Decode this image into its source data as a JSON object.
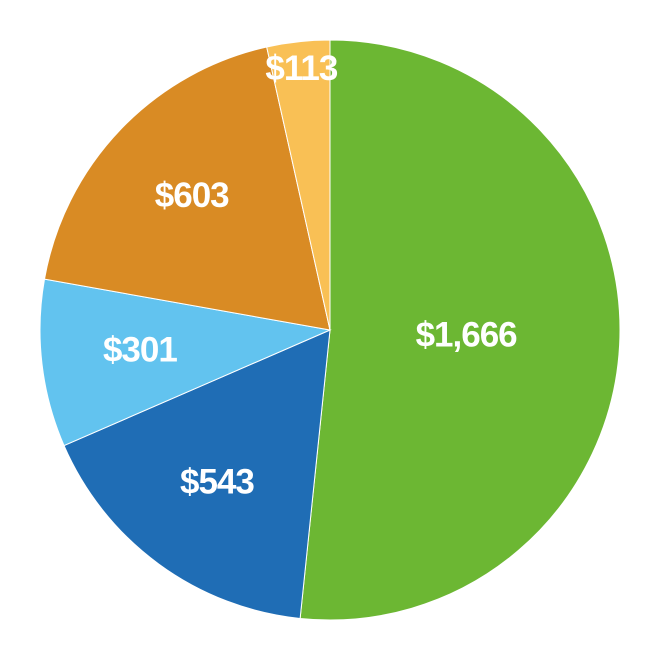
{
  "chart_data": {
    "type": "pie",
    "values": [
      1666,
      543,
      301,
      603,
      113
    ],
    "value_labels": [
      "$1,666",
      "$543",
      "$301",
      "$603",
      "$113"
    ],
    "colors": [
      "#6cb733",
      "#1f6db5",
      "#62c3ef",
      "#d98b24",
      "#f9c055"
    ]
  }
}
